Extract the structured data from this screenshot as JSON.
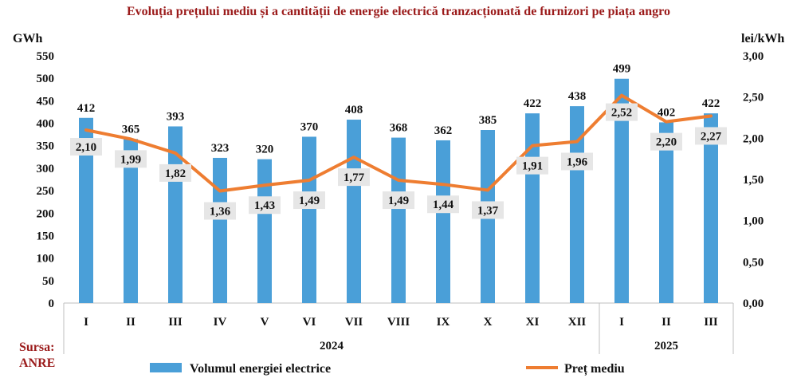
{
  "title": "Evoluția prețului mediu și a cantității de energie electrică tranzacționată de furnizori pe piața angro",
  "source_line1": "Sursa:",
  "source_line2": "ANRE",
  "colors": {
    "bar": "#4a9fd8",
    "line": "#ee7d31",
    "title": "#9b1b1b",
    "label_bg": "#e6e6e6"
  },
  "chart_data": {
    "type": "bar",
    "categories": [
      "I",
      "II",
      "III",
      "IV",
      "V",
      "VI",
      "VII",
      "VIII",
      "IX",
      "X",
      "XI",
      "XII",
      "I",
      "II",
      "III"
    ],
    "year_groups": [
      {
        "label": "2024",
        "count": 12
      },
      {
        "label": "2025",
        "count": 3
      }
    ],
    "series": [
      {
        "name": "Volumul energiei electrice",
        "type": "bar",
        "axis": "left",
        "values": [
          412,
          365,
          393,
          323,
          320,
          370,
          408,
          368,
          362,
          385,
          422,
          438,
          499,
          402,
          422
        ],
        "labels": [
          "412",
          "365",
          "393",
          "323",
          "320",
          "370",
          "408",
          "368",
          "362",
          "385",
          "422",
          "438",
          "499",
          "402",
          "422"
        ]
      },
      {
        "name": "Preț mediu",
        "type": "line",
        "axis": "right",
        "values": [
          2.1,
          1.99,
          1.82,
          1.36,
          1.43,
          1.49,
          1.77,
          1.49,
          1.44,
          1.37,
          1.91,
          1.96,
          2.52,
          2.2,
          2.27
        ],
        "labels": [
          "2,10",
          "1,99",
          "1,82",
          "1,36",
          "1,43",
          "1,49",
          "1,77",
          "1,49",
          "1,44",
          "1,37",
          "1,91",
          "1,96",
          "2,52",
          "2,20",
          "2,27"
        ]
      }
    ],
    "y_left": {
      "label": "GWh",
      "min": 0,
      "max": 550,
      "ticks": [
        "0",
        "50",
        "100",
        "150",
        "200",
        "250",
        "300",
        "350",
        "400",
        "450",
        "500",
        "550"
      ]
    },
    "y_right": {
      "label": "lei/kWh",
      "min": 0,
      "max": 3,
      "ticks": [
        "0,00",
        "0,50",
        "1,00",
        "1,50",
        "2,00",
        "2,50",
        "3,00"
      ]
    },
    "legend": "bottom",
    "grid": false
  }
}
